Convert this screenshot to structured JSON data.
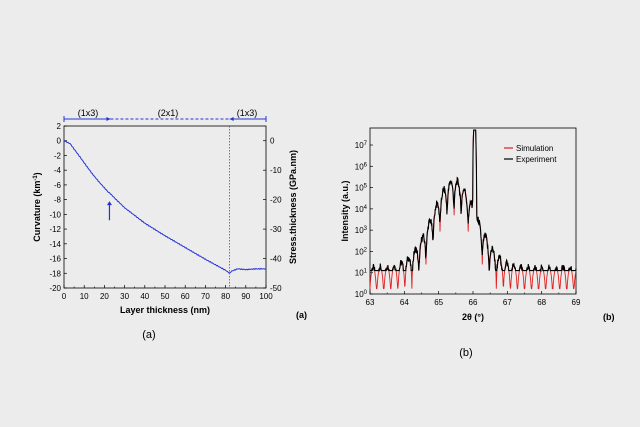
{
  "chart_data": [
    {
      "type": "line",
      "panel_tag": "(a)",
      "caption": "(a)",
      "xlabel": "Layer thickness (nm)",
      "ylabel": "Curvature (km",
      "ylabel_sup": "-1",
      "ylabel_end": ")",
      "y2label": "Stress.thickness (GPa.nm)",
      "xlim": [
        0,
        100
      ],
      "ylim": [
        -20,
        2
      ],
      "y2lim": [
        -50,
        5
      ],
      "xticks": [
        "0",
        "10",
        "20",
        "30",
        "40",
        "50",
        "60",
        "70",
        "80",
        "90",
        "100"
      ],
      "yticks": [
        "2",
        "0",
        "-2",
        "-4",
        "-6",
        "-8",
        "-10",
        "-12",
        "-14",
        "-16",
        "-18",
        "-20"
      ],
      "y2ticks": [
        "0",
        "-10",
        "-20",
        "-30",
        "-40",
        "-50"
      ],
      "color": "#2433d6",
      "grid": false,
      "reconstruction_bar": {
        "labels": [
          "(1x3)",
          "(2x1)",
          "(1x3)"
        ],
        "segments": [
          [
            0,
            23
          ],
          [
            23,
            82
          ],
          [
            82,
            100
          ]
        ],
        "styles": [
          "solid",
          "dashed",
          "solid"
        ]
      },
      "annotations": {
        "arrow_at_x": 23,
        "vertical_dotted_line_x": 82
      },
      "series": [
        {
          "x": [
            0,
            3,
            6,
            10,
            14,
            18,
            22,
            23,
            24,
            30,
            40,
            50,
            60,
            70,
            80,
            82,
            83,
            86,
            90,
            95,
            100
          ],
          "y": [
            0,
            -0.4,
            -1.5,
            -3.0,
            -4.5,
            -5.8,
            -7.0,
            -7.2,
            -7.5,
            -9.1,
            -11.2,
            -12.9,
            -14.5,
            -16.1,
            -17.6,
            -18.0,
            -17.7,
            -17.4,
            -17.5,
            -17.4,
            -17.4
          ]
        }
      ]
    },
    {
      "type": "line",
      "panel_tag": "(b)",
      "caption": "(b)",
      "xlabel": "2θ (°)",
      "ylabel": "Intensity (a.u.)",
      "xlim": [
        63,
        69
      ],
      "ylim_log10": [
        0,
        7.8
      ],
      "xticks": [
        "63",
        "64",
        "65",
        "66",
        "67",
        "68",
        "69"
      ],
      "ytick_exponents": [
        0,
        1,
        2,
        3,
        4,
        5,
        6,
        7
      ],
      "ytick_base": "10",
      "scale_y": "log",
      "legend": "top-right",
      "grid": false,
      "model": {
        "substrate_peak_2theta": 66.05,
        "layer_peak_2theta": 65.45,
        "substrate_peak_log10": 7.7,
        "layer_peak_log10": 5.3,
        "background_log10": 1.2
      },
      "series": [
        {
          "name": "Simulation",
          "color": "#e02020"
        },
        {
          "name": "Experiment",
          "color": "#000000"
        }
      ]
    }
  ]
}
